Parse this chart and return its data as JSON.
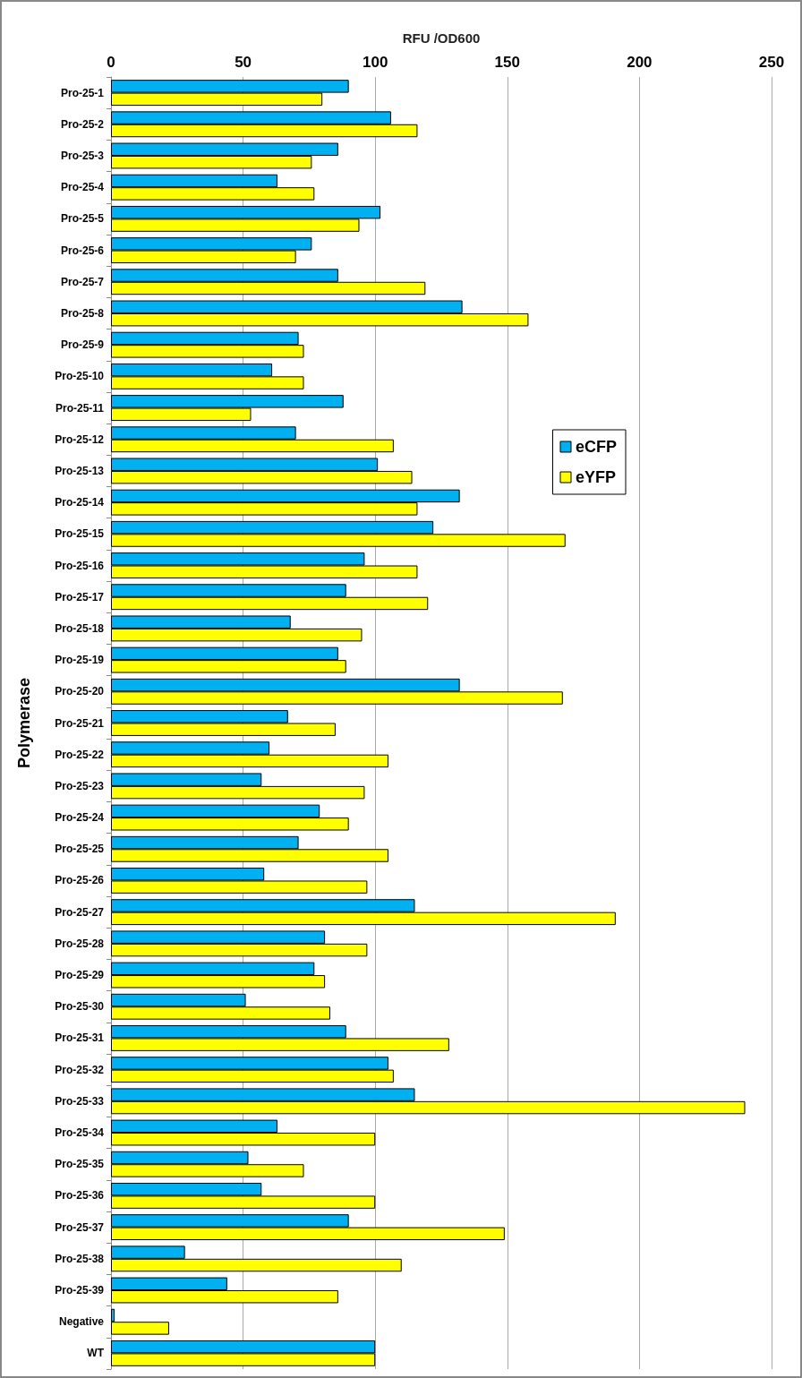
{
  "chart_data": {
    "type": "bar",
    "orientation": "horizontal",
    "xlabel": "RFU /OD600",
    "ylabel": "Polymerase",
    "categories": [
      "Pro-25-1",
      "Pro-25-2",
      "Pro-25-3",
      "Pro-25-4",
      "Pro-25-5",
      "Pro-25-6",
      "Pro-25-7",
      "Pro-25-8",
      "Pro-25-9",
      "Pro-25-10",
      "Pro-25-11",
      "Pro-25-12",
      "Pro-25-13",
      "Pro-25-14",
      "Pro-25-15",
      "Pro-25-16",
      "Pro-25-17",
      "Pro-25-18",
      "Pro-25-19",
      "Pro-25-20",
      "Pro-25-21",
      "Pro-25-22",
      "Pro-25-23",
      "Pro-25-24",
      "Pro-25-25",
      "Pro-25-26",
      "Pro-25-27",
      "Pro-25-28",
      "Pro-25-29",
      "Pro-25-30",
      "Pro-25-31",
      "Pro-25-32",
      "Pro-25-33",
      "Pro-25-34",
      "Pro-25-35",
      "Pro-25-36",
      "Pro-25-37",
      "Pro-25-38",
      "Pro-25-39",
      "Negative",
      "WT"
    ],
    "series": [
      {
        "name": "eCFP",
        "color": "#00b0f0",
        "values": [
          90,
          106,
          86,
          63,
          102,
          76,
          86,
          133,
          71,
          61,
          88,
          70,
          101,
          132,
          122,
          96,
          89,
          68,
          86,
          132,
          67,
          60,
          57,
          79,
          71,
          58,
          115,
          81,
          77,
          51,
          89,
          105,
          115,
          63,
          52,
          57,
          90,
          28,
          44,
          1.4,
          100
        ]
      },
      {
        "name": "eYFP",
        "color": "#ffff00",
        "values": [
          80,
          116,
          76,
          77,
          94,
          70,
          119,
          158,
          73,
          73,
          53,
          107,
          114,
          116,
          172,
          116,
          120,
          95,
          89,
          171,
          85,
          105,
          96,
          90,
          105,
          97,
          191,
          97,
          81,
          83,
          128,
          107,
          240,
          100,
          73,
          100,
          149,
          110,
          86,
          22,
          100
        ]
      }
    ],
    "xlim": [
      0,
      250
    ],
    "xticks": [
      0,
      50,
      100,
      150,
      200,
      250
    ],
    "grid": "x",
    "legend": "right"
  }
}
